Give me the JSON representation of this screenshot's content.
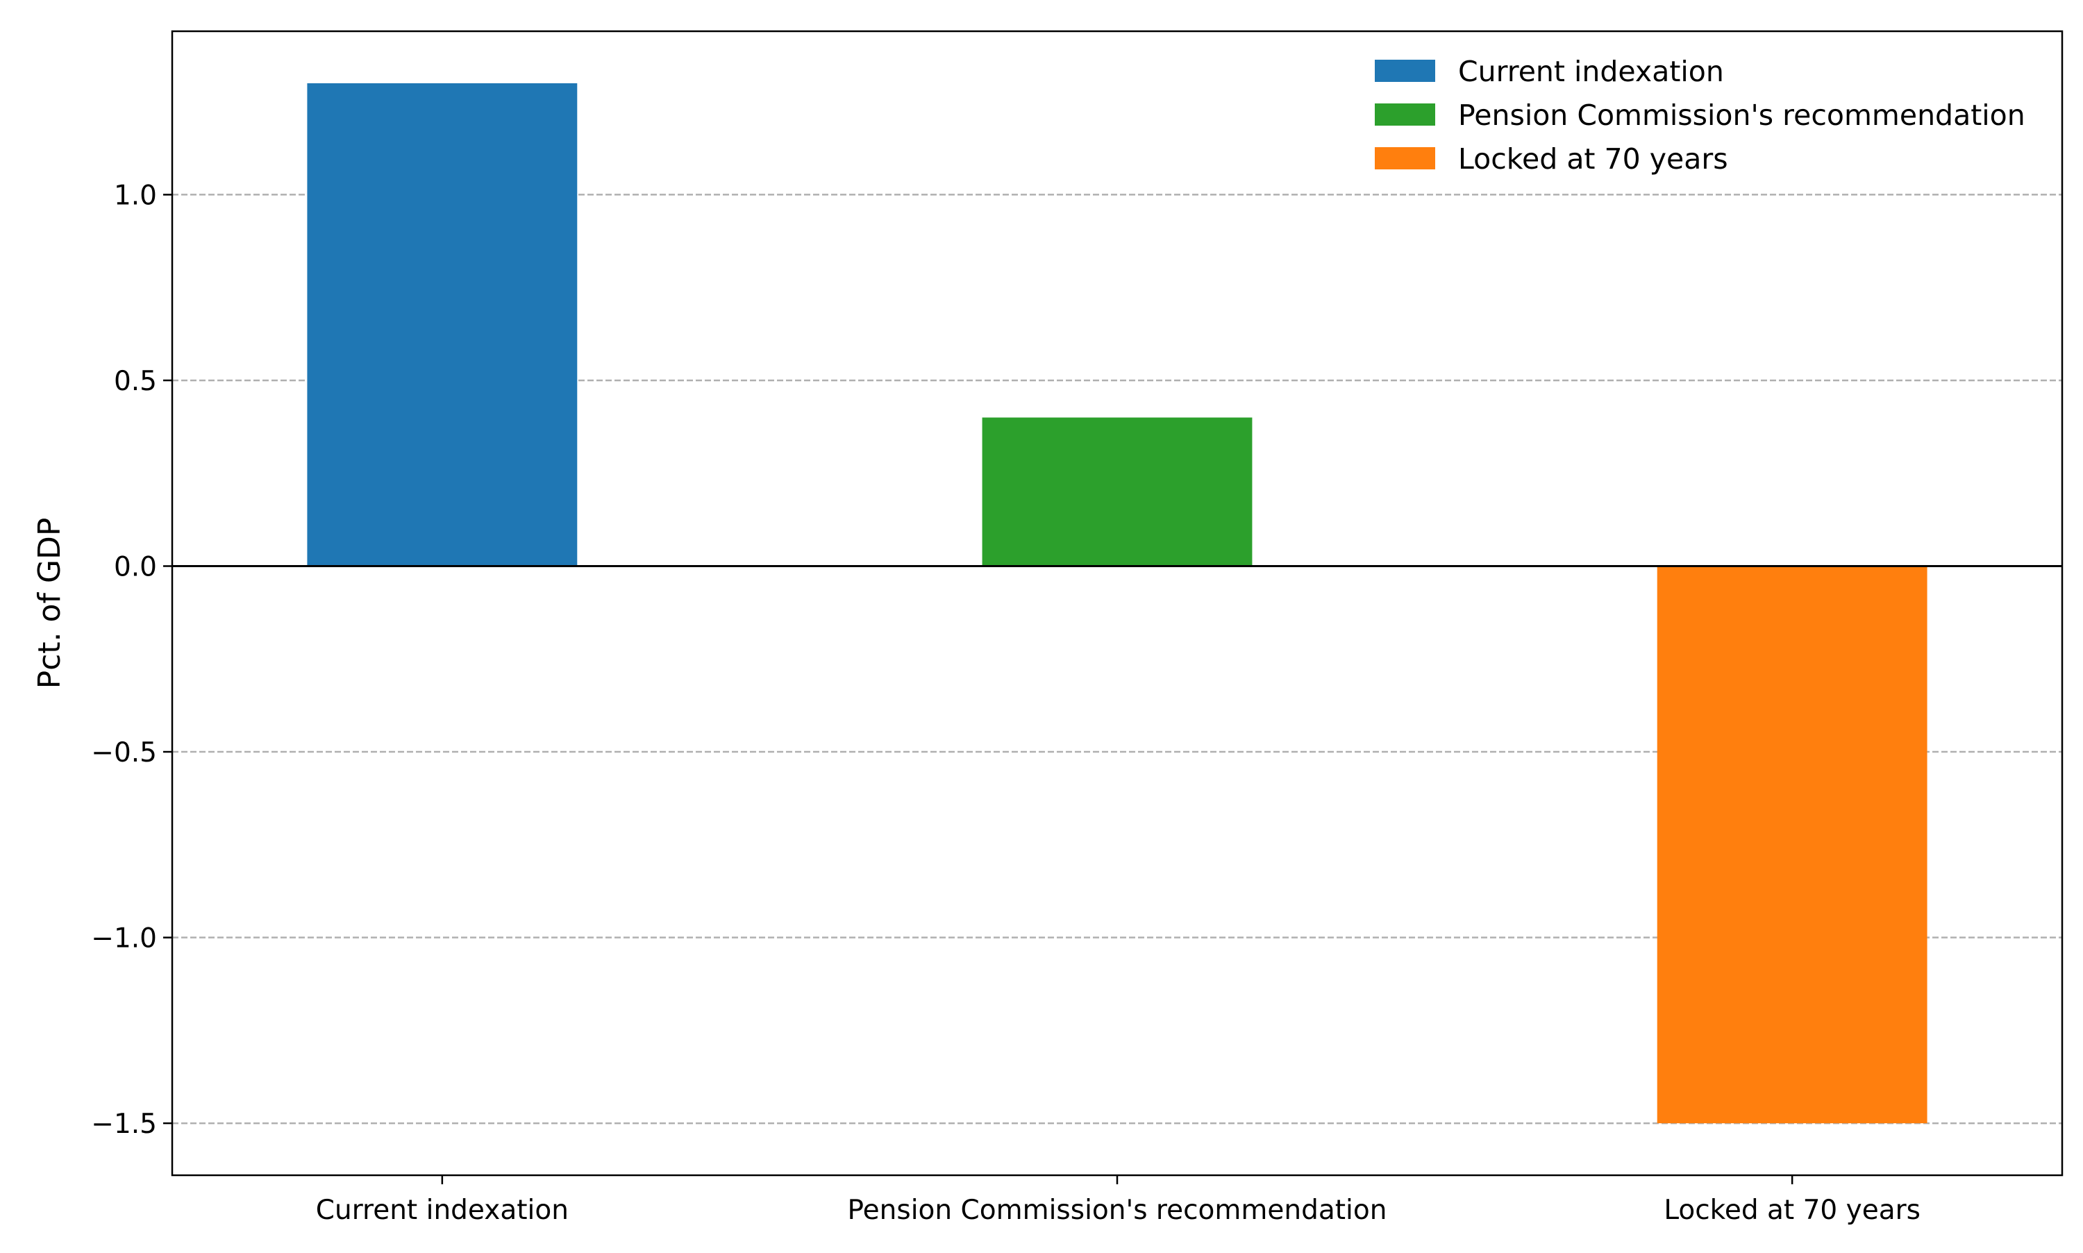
{
  "chart_data": {
    "type": "bar",
    "categories": [
      "Current indexation",
      "Pension Commission's recommendation",
      "Locked at 70 years"
    ],
    "values": [
      1.3,
      0.4,
      -1.5
    ],
    "colors": [
      "#1f77b4",
      "#2ca02c",
      "#ff7f0e"
    ],
    "ylabel": "Pct. of GDP",
    "xlabel": "",
    "ylim": [
      -1.64,
      1.44
    ],
    "yticks": [
      1.0,
      0.5,
      0.0,
      -0.5,
      -1.0,
      -1.5
    ],
    "ytick_labels": [
      "1.0",
      "0.5",
      "0.0",
      "−0.5",
      "−1.0",
      "−1.5"
    ],
    "grid": "horizontal dashed",
    "zero_line": true,
    "legend": {
      "placement": "top-right",
      "entries": [
        "Current indexation",
        "Pension Commission's recommendation",
        "Locked at 70 years"
      ]
    }
  }
}
